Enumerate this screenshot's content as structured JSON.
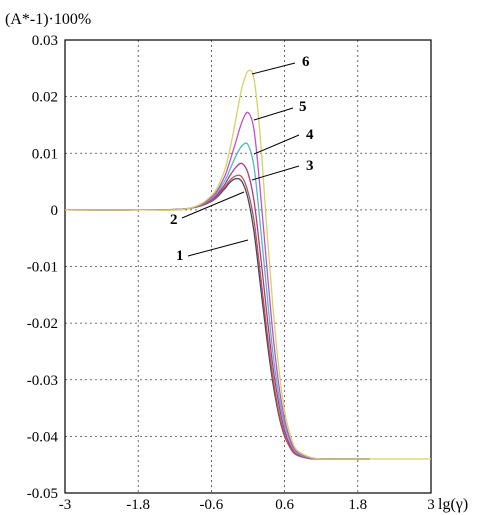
{
  "chart_data": {
    "type": "line",
    "ylabel": "(A*-1)·100%",
    "xlabel": "lg(γ)",
    "xlim": [
      -3,
      3
    ],
    "ylim": [
      -0.05,
      0.03
    ],
    "xticks": [
      "-3",
      "-1.8",
      "-0.6",
      "0.6",
      "1.8",
      "3"
    ],
    "yticks": [
      "0.03",
      "0.02",
      "0.01",
      "0",
      "-0.01",
      "-0.02",
      "-0.03",
      "-0.04",
      "-0.05"
    ],
    "grid": true,
    "series": [
      {
        "name": "1",
        "color": "#3a4a6a",
        "x": [
          -3,
          -1.8,
          -1.0,
          -0.6,
          -0.4,
          -0.3,
          -0.2,
          -0.1,
          0.0,
          0.1,
          0.2,
          0.3,
          0.4,
          0.5,
          0.6,
          0.7,
          0.8,
          1.0,
          1.2,
          1.5,
          2.0
        ],
        "y": [
          0.0,
          0.0,
          0.0002,
          0.0015,
          0.0035,
          0.0048,
          0.0055,
          0.005,
          0.002,
          -0.004,
          -0.013,
          -0.022,
          -0.03,
          -0.036,
          -0.04,
          -0.042,
          -0.0432,
          -0.0438,
          -0.044,
          -0.044,
          -0.044
        ]
      },
      {
        "name": "2",
        "color": "#c05050",
        "x": [
          -3,
          -1.8,
          -1.0,
          -0.6,
          -0.4,
          -0.3,
          -0.2,
          -0.1,
          0.0,
          0.1,
          0.2,
          0.3,
          0.4,
          0.5,
          0.6,
          0.7,
          0.8,
          1.0,
          1.2,
          1.5,
          2.0
        ],
        "y": [
          0.0,
          0.0,
          0.0002,
          0.0016,
          0.0038,
          0.0052,
          0.006,
          0.0058,
          0.0032,
          -0.002,
          -0.011,
          -0.0205,
          -0.029,
          -0.0355,
          -0.0398,
          -0.0422,
          -0.0433,
          -0.0439,
          -0.044,
          -0.044,
          -0.044
        ]
      },
      {
        "name": "3",
        "color": "#b03a80",
        "x": [
          -3,
          -1.8,
          -1.0,
          -0.6,
          -0.4,
          -0.3,
          -0.2,
          -0.1,
          0.0,
          0.1,
          0.2,
          0.3,
          0.4,
          0.5,
          0.6,
          0.7,
          0.8,
          1.0,
          1.2,
          1.5,
          2.0
        ],
        "y": [
          0.0,
          0.0,
          0.0002,
          0.0018,
          0.0042,
          0.006,
          0.0075,
          0.0082,
          0.0065,
          0.0015,
          -0.0075,
          -0.0175,
          -0.027,
          -0.034,
          -0.039,
          -0.0418,
          -0.0432,
          -0.0439,
          -0.044,
          -0.044,
          -0.044
        ]
      },
      {
        "name": "4",
        "color": "#50b8c8",
        "x": [
          -3,
          -1.8,
          -1.0,
          -0.6,
          -0.4,
          -0.3,
          -0.2,
          -0.1,
          0.0,
          0.1,
          0.2,
          0.3,
          0.4,
          0.5,
          0.6,
          0.7,
          0.8,
          1.0,
          1.2,
          1.5,
          2.0
        ],
        "y": [
          0.0,
          0.0,
          0.0002,
          0.002,
          0.0048,
          0.007,
          0.0095,
          0.0113,
          0.0115,
          0.0075,
          -0.0025,
          -0.0135,
          -0.0245,
          -0.0325,
          -0.038,
          -0.0412,
          -0.0429,
          -0.0438,
          -0.044,
          -0.044,
          -0.044
        ]
      },
      {
        "name": "5",
        "color": "#c050c8",
        "x": [
          -3,
          -1.8,
          -1.0,
          -0.6,
          -0.4,
          -0.3,
          -0.2,
          -0.1,
          0.0,
          0.1,
          0.2,
          0.3,
          0.4,
          0.5,
          0.6,
          0.7,
          0.8,
          1.0,
          1.2,
          1.5,
          2.0
        ],
        "y": [
          0.0,
          0.0,
          0.0002,
          0.0022,
          0.0055,
          0.0085,
          0.012,
          0.0155,
          0.0172,
          0.014,
          0.0035,
          -0.009,
          -0.021,
          -0.0305,
          -0.037,
          -0.0408,
          -0.0427,
          -0.0437,
          -0.044,
          -0.044,
          -0.044
        ]
      },
      {
        "name": "6",
        "color": "#d8d060",
        "x": [
          -3,
          -1.8,
          -1.0,
          -0.6,
          -0.4,
          -0.3,
          -0.2,
          -0.1,
          0.0,
          0.1,
          0.2,
          0.3,
          0.4,
          0.5,
          0.6,
          0.7,
          0.8,
          1.0,
          1.2,
          1.5,
          2.0,
          2.5,
          3.0
        ],
        "y": [
          0.0,
          0.0,
          0.0002,
          0.0025,
          0.0065,
          0.0105,
          0.016,
          0.0215,
          0.0245,
          0.023,
          0.013,
          -0.002,
          -0.016,
          -0.0275,
          -0.0355,
          -0.04,
          -0.0424,
          -0.0436,
          -0.044,
          -0.044,
          -0.044,
          -0.044,
          -0.044
        ]
      }
    ]
  }
}
